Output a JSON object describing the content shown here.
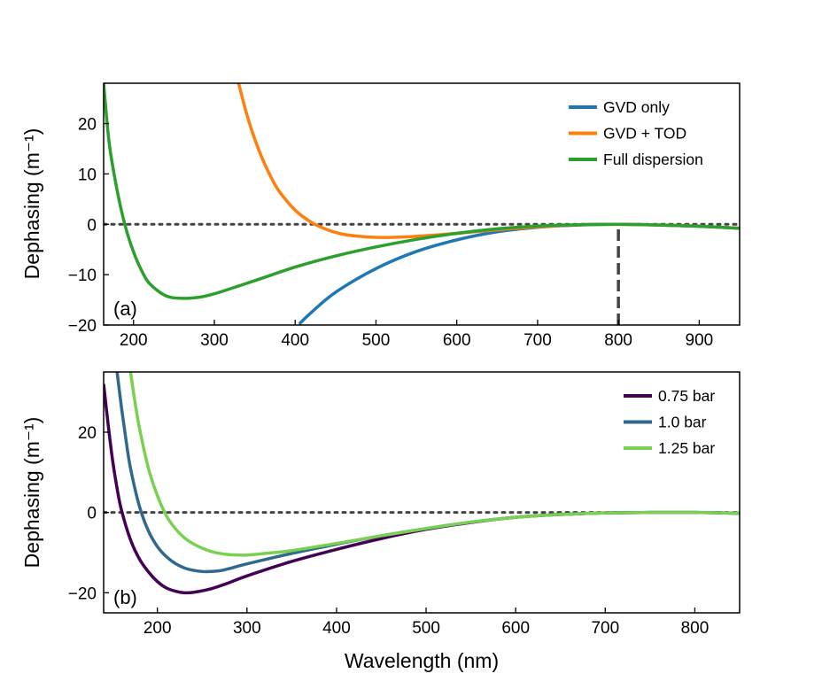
{
  "chart_data": [
    {
      "type": "line",
      "panel_label": "(a)",
      "xlabel": "",
      "ylabel": "Dephasing (m⁻¹)",
      "xlim": [
        163,
        950
      ],
      "ylim": [
        -20,
        28
      ],
      "xticks": [
        200,
        300,
        400,
        500,
        600,
        700,
        800,
        900
      ],
      "yticks": [
        -20,
        -10,
        0,
        10,
        20
      ],
      "grid": false,
      "legend_position": "top-right",
      "reference_lines": [
        {
          "kind": "horizontal",
          "y": 0,
          "style": "dotted",
          "color": "#444444"
        },
        {
          "kind": "vertical",
          "x": 800,
          "y_from": -20,
          "y_to": 0,
          "style": "dashed",
          "color": "#444444"
        }
      ],
      "series": [
        {
          "name": "GVD only",
          "color": "#1f77b4",
          "x": [
            405,
            420,
            450,
            500,
            550,
            600,
            650,
            700,
            750,
            800,
            850,
            900,
            950
          ],
          "y": [
            -19.8,
            -17.5,
            -13.5,
            -8.8,
            -5.4,
            -3.1,
            -1.5,
            -0.6,
            -0.15,
            0.0,
            -0.15,
            -0.4,
            -0.8
          ]
        },
        {
          "name": "GVD + TOD",
          "color": "#ff7f0e",
          "x": [
            330,
            340,
            350,
            360,
            370,
            380,
            400,
            420,
            440,
            460,
            480,
            500,
            520,
            550,
            600,
            650,
            700,
            750,
            800,
            850,
            900,
            950
          ],
          "y": [
            28,
            21.9,
            16.9,
            12.8,
            9.4,
            6.6,
            2.8,
            0.4,
            -1.1,
            -2.0,
            -2.4,
            -2.6,
            -2.6,
            -2.4,
            -1.8,
            -1.1,
            -0.5,
            -0.1,
            0.0,
            -0.15,
            -0.4,
            -0.8
          ]
        },
        {
          "name": "Full dispersion",
          "color": "#2ca02c",
          "x": [
            163,
            170,
            180,
            190,
            200,
            210,
            220,
            240,
            260,
            280,
            300,
            350,
            400,
            450,
            500,
            550,
            600,
            650,
            700,
            750,
            800,
            850,
            900,
            950
          ],
          "y": [
            28,
            16,
            6.5,
            -0.5,
            -5.5,
            -9.2,
            -11.8,
            -14.2,
            -14.7,
            -14.5,
            -13.8,
            -11.2,
            -8.5,
            -6.3,
            -4.5,
            -3.0,
            -1.8,
            -0.9,
            -0.35,
            -0.08,
            0.0,
            -0.15,
            -0.4,
            -0.8
          ]
        }
      ]
    },
    {
      "type": "line",
      "panel_label": "(b)",
      "xlabel": "Wavelength (nm)",
      "ylabel": "Dephasing (m⁻¹)",
      "xlim": [
        140,
        850
      ],
      "ylim": [
        -25,
        35
      ],
      "xticks": [
        200,
        300,
        400,
        500,
        600,
        700,
        800
      ],
      "yticks": [
        -20,
        0,
        20
      ],
      "grid": false,
      "legend_position": "top-right",
      "reference_lines": [
        {
          "kind": "horizontal",
          "y": 0,
          "style": "dotted",
          "color": "#444444"
        }
      ],
      "series": [
        {
          "name": "0.75 bar",
          "color": "#440154",
          "x": [
            140,
            145,
            150,
            155,
            160,
            170,
            180,
            190,
            200,
            210,
            220,
            230,
            240,
            260,
            280,
            300,
            350,
            400,
            450,
            500,
            550,
            600,
            650,
            700,
            750,
            800,
            850
          ],
          "y": [
            32,
            22,
            13,
            6,
            0.5,
            -6.8,
            -11.6,
            -14.8,
            -17.2,
            -18.8,
            -19.6,
            -20.0,
            -19.9,
            -19.0,
            -17.5,
            -15.8,
            -12.2,
            -9.2,
            -6.5,
            -4.2,
            -2.5,
            -1.2,
            -0.5,
            -0.1,
            0.0,
            0.0,
            -0.2
          ]
        },
        {
          "name": "1.0 bar",
          "color": "#31688e",
          "x": [
            155,
            160,
            165,
            170,
            180,
            190,
            200,
            210,
            220,
            230,
            240,
            250,
            260,
            270,
            280,
            300,
            350,
            400,
            450,
            500,
            550,
            600,
            650,
            700,
            750,
            800,
            850
          ],
          "y": [
            35,
            26,
            18,
            11,
            1.5,
            -4.6,
            -8.5,
            -11.0,
            -12.7,
            -13.8,
            -14.4,
            -14.7,
            -14.7,
            -14.5,
            -14.0,
            -12.8,
            -10.2,
            -7.9,
            -5.8,
            -4.0,
            -2.4,
            -1.2,
            -0.5,
            -0.1,
            0.0,
            0.0,
            -0.2
          ]
        },
        {
          "name": "1.25 bar",
          "color": "#7ad151",
          "x": [
            170,
            175,
            180,
            190,
            200,
            210,
            220,
            230,
            240,
            250,
            260,
            270,
            280,
            290,
            300,
            320,
            350,
            400,
            450,
            500,
            550,
            600,
            650,
            700,
            750,
            800,
            850
          ],
          "y": [
            35,
            27.5,
            21,
            11,
            4.2,
            -0.8,
            -4.0,
            -6.3,
            -7.8,
            -8.9,
            -9.7,
            -10.2,
            -10.5,
            -10.6,
            -10.6,
            -10.2,
            -9.5,
            -7.7,
            -5.8,
            -4.0,
            -2.4,
            -1.2,
            -0.5,
            -0.1,
            0.0,
            0.0,
            -0.2
          ]
        }
      ]
    }
  ]
}
